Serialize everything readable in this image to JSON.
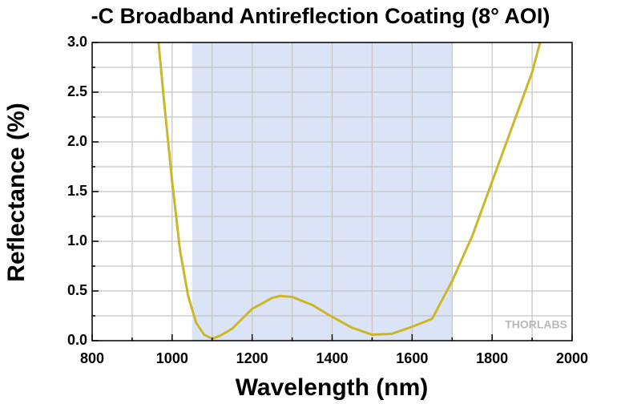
{
  "chart_data": {
    "type": "line",
    "title": "-C Broadband Antireflection Coating (8° AOI)",
    "x_label": "Wavelength (nm)",
    "y_label": "Reflectance (%)",
    "watermark": "THORLABS",
    "x": [
      966,
      980,
      1000,
      1020,
      1040,
      1060,
      1080,
      1100,
      1120,
      1150,
      1200,
      1250,
      1270,
      1300,
      1350,
      1400,
      1450,
      1500,
      1550,
      1600,
      1650,
      1700,
      1750,
      1800,
      1850,
      1900,
      1920
    ],
    "series": [
      {
        "name": "Reflectance",
        "color": "#cbb728",
        "values": [
          3.0,
          2.4,
          1.6,
          0.9,
          0.45,
          0.18,
          0.06,
          0.02,
          0.05,
          0.12,
          0.32,
          0.43,
          0.45,
          0.44,
          0.36,
          0.24,
          0.13,
          0.06,
          0.07,
          0.14,
          0.22,
          0.6,
          1.05,
          1.6,
          2.15,
          2.7,
          3.0
        ]
      }
    ],
    "shaded_range": [
      1050,
      1700
    ],
    "shaded_color": "#dbe4f6",
    "xlim": [
      800,
      2000
    ],
    "xticks": [
      800,
      1000,
      1200,
      1400,
      1600,
      1800,
      2000
    ],
    "x_minor_ticks": [
      900,
      1100,
      1300,
      1500,
      1700,
      1900
    ],
    "ylim": [
      0,
      3
    ],
    "yticks": [
      {
        "value": 0,
        "label": "0.0"
      },
      {
        "value": 0.5,
        "label": "0.5"
      },
      {
        "value": 1,
        "label": "1.0"
      },
      {
        "value": 1.5,
        "label": "1.5"
      },
      {
        "value": 2,
        "label": "2.0"
      },
      {
        "value": 2.5,
        "label": "2.5"
      },
      {
        "value": 3,
        "label": "3.0"
      }
    ],
    "y_minor_ticks": [
      0.25,
      0.75,
      1.25,
      1.75,
      2.25,
      2.75
    ],
    "grid": true
  }
}
